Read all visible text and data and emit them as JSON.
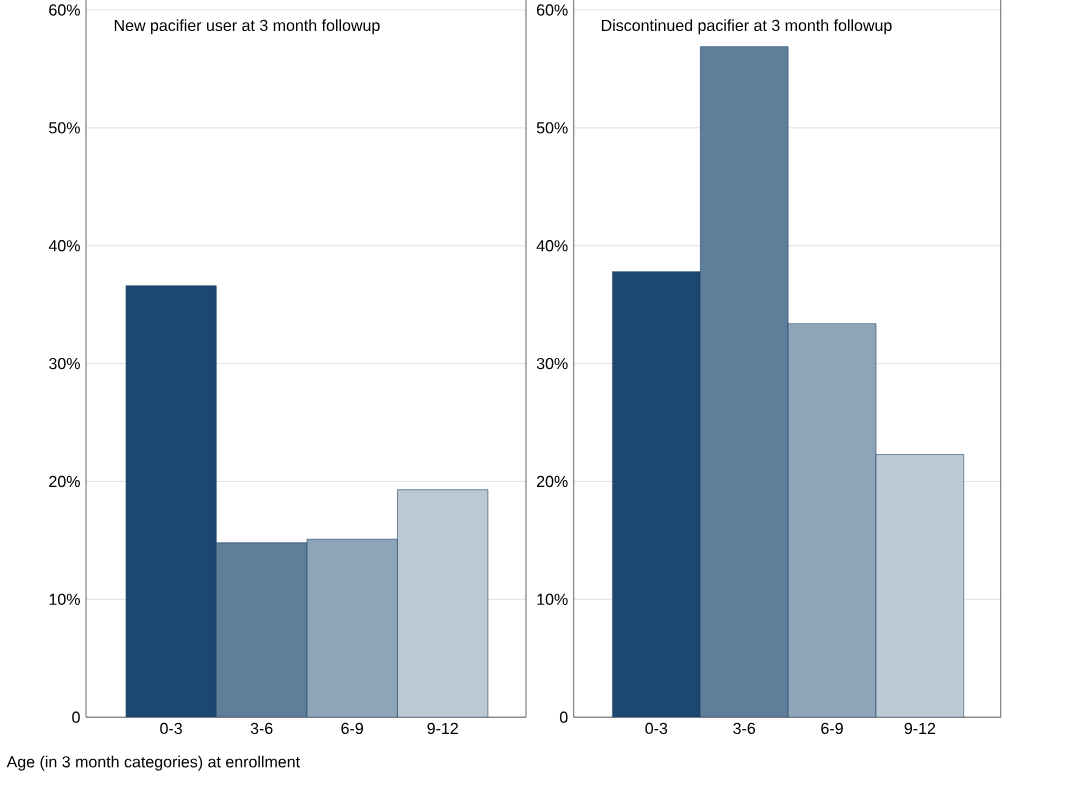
{
  "chart_data": [
    {
      "type": "bar",
      "title": "New pacifier user at 3 month followup",
      "xlabel": "Age (in 3 month categories) at enrollment",
      "categories": [
        "0-3",
        "3-6",
        "6-9",
        "9-12"
      ],
      "values": [
        36.6,
        14.8,
        15.1,
        19.3
      ],
      "colors": [
        "#1c4770",
        "#5e7e9a",
        "#8ea4b8",
        "#bac9d4"
      ],
      "ylim": [
        0,
        61
      ],
      "yticks": [
        {
          "value": 0,
          "label": "0"
        },
        {
          "value": 10,
          "label": "10%"
        },
        {
          "value": 20,
          "label": "20%"
        },
        {
          "value": 30,
          "label": "30%"
        },
        {
          "value": 40,
          "label": "40%"
        },
        {
          "value": 50,
          "label": "50%"
        },
        {
          "value": 60,
          "label": "60%"
        }
      ],
      "grid": "y"
    },
    {
      "type": "bar",
      "title": "Discontinued pacifier at 3 month followup",
      "categories": [
        "0-3",
        "3-6",
        "6-9",
        "9-12"
      ],
      "values": [
        37.8,
        56.9,
        33.4,
        22.3
      ],
      "colors": [
        "#1c4770",
        "#5e7e9a",
        "#8ea4b8",
        "#bac9d4"
      ],
      "ylim": [
        0,
        61
      ],
      "yticks": [
        {
          "value": 0,
          "label": "0"
        },
        {
          "value": 10,
          "label": "10%"
        },
        {
          "value": 20,
          "label": "20%"
        },
        {
          "value": 30,
          "label": "30%"
        },
        {
          "value": 40,
          "label": "40%"
        },
        {
          "value": 50,
          "label": "50%"
        },
        {
          "value": 60,
          "label": "60%"
        }
      ],
      "grid": "y"
    }
  ]
}
